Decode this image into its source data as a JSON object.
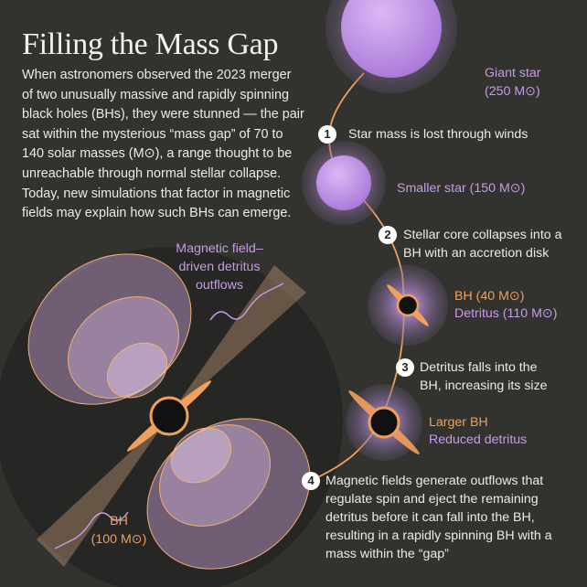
{
  "title": "Filling the Mass Gap",
  "intro": "When astronomers observed the 2023 merger of two unusually massive and rapidly spinning black holes (BHs), they were stunned — the pair sat within the mysterious “mass gap” of 70 to 140 solar masses (M⊙), a range thought to be unreachable through normal stellar collapse. Today, new simulations that factor in magnetic fields may explain how such BHs can emerge.",
  "labels": {
    "giant_star": [
      "Giant star",
      "(250 M⊙)"
    ],
    "smaller_star": "Smaller star (150 M⊙)",
    "bh_40": "BH (40 M⊙)",
    "detritus_110": "Detritus (110 M⊙)",
    "larger_bh": "Larger BH",
    "reduced_detritus": "Reduced detritus",
    "outflows": [
      "Magnetic field–",
      "driven detritus",
      "outflows"
    ],
    "bh_100": [
      "BH",
      "(100 M⊙)"
    ]
  },
  "steps": [
    {
      "num": "1",
      "text": "Star mass is lost through winds"
    },
    {
      "num": "2",
      "text": "Stellar core collapses into a BH with an accretion disk"
    },
    {
      "num": "3",
      "text": "Detritus falls into the BH, increasing its size"
    },
    {
      "num": "4",
      "text": "Magnetic fields generate outflows that regulate spin and eject the remaining detritus before it can fall into the BH, resulting in a rapidly spinning BH with a mass within the “gap”"
    }
  ],
  "colors": {
    "background": "#32322f",
    "purple": "#c89be8",
    "orange": "#f0a05a"
  }
}
